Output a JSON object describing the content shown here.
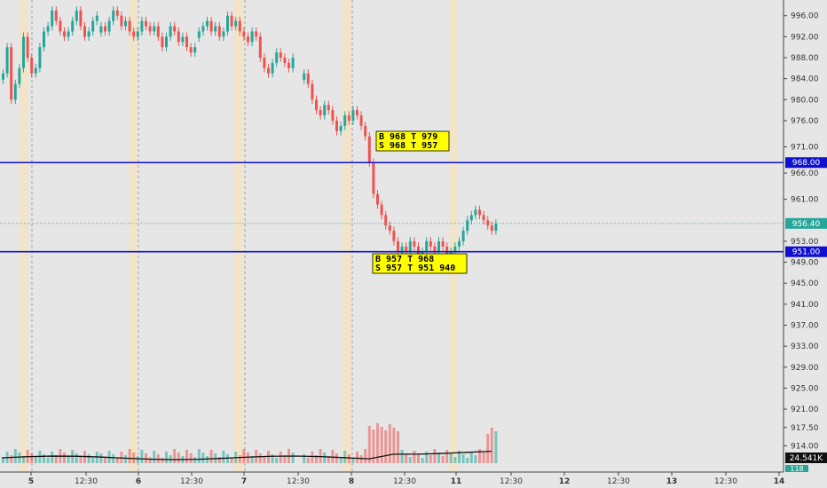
{
  "chart_data": {
    "type": "candlestick",
    "price_axis": {
      "ticks": [
        "996.00",
        "992.00",
        "988.00",
        "984.00",
        "980.00",
        "976.00",
        "971.00",
        "966.00",
        "961.00",
        "953.00",
        "949.00",
        "945.00",
        "941.00",
        "937.00",
        "933.00",
        "929.00",
        "925.00",
        "921.00",
        "917.50",
        "914.00"
      ],
      "tick_values": [
        996,
        992,
        988,
        984,
        980,
        976,
        971,
        966,
        961,
        953,
        949,
        945,
        941,
        937,
        933,
        929,
        925,
        921,
        917.5,
        914
      ],
      "ylim": [
        909,
        999
      ]
    },
    "time_axis": {
      "ticks": [
        "5",
        "12:30",
        "6",
        "12:30",
        "7",
        "12:30",
        "8",
        "12:30",
        "11",
        "12:30",
        "12",
        "12:30",
        "13",
        "12:30",
        "14"
      ]
    },
    "levels": [
      {
        "price": 968.0,
        "label": "968.00",
        "color": "#1010d0"
      },
      {
        "price": 951.0,
        "label": "951.00",
        "color": "#1010d0"
      }
    ],
    "last_price": {
      "price": 956.4,
      "label": "956.40",
      "color": "#26a69a"
    },
    "volume_label": {
      "label": "24.541K"
    },
    "partial_labels": [
      "118"
    ],
    "callouts": [
      {
        "lines": [
          "B 968 T 979",
          "S 968 T 957"
        ]
      },
      {
        "lines": [
          "B 957 T 968",
          "S 957 T 951 940"
        ]
      }
    ],
    "day_separators": [
      1,
      2,
      3,
      4
    ],
    "highlight_bands_days": [
      0,
      1,
      2,
      3,
      4
    ],
    "candles": [
      {
        "d": 0,
        "c": [
          985,
          990,
          980,
          983,
          986,
          992,
          988,
          985,
          986,
          990,
          993,
          994,
          997,
          995,
          993,
          992,
          993,
          995,
          997,
          994,
          992,
          993,
          995,
          996
        ]
      },
      {
        "d": 1,
        "c": [
          994,
          993,
          995,
          997,
          996,
          994,
          995,
          993,
          992,
          993,
          995,
          994,
          993,
          994,
          992,
          990,
          992,
          994,
          993,
          991,
          992,
          990,
          989,
          990
        ]
      },
      {
        "d": 2,
        "c": [
          993,
          994,
          995,
          993,
          994,
          992,
          993,
          996,
          994,
          995,
          993,
          992,
          991,
          993,
          992,
          988,
          986,
          985,
          987,
          989,
          988,
          987,
          986,
          988
        ]
      },
      {
        "d": 3,
        "c": [
          985,
          983,
          980,
          978,
          977,
          979,
          978,
          976,
          974,
          975,
          977,
          976,
          978,
          977,
          975,
          973,
          968,
          962,
          960,
          958,
          956,
          955,
          953,
          951
        ]
      },
      {
        "d": 4,
        "c": [
          952,
          951,
          953,
          952,
          950,
          951,
          953,
          952,
          951,
          953,
          952,
          950,
          951,
          952,
          953,
          955,
          957,
          958,
          959,
          958,
          957,
          956,
          955,
          956.4
        ]
      }
    ]
  }
}
